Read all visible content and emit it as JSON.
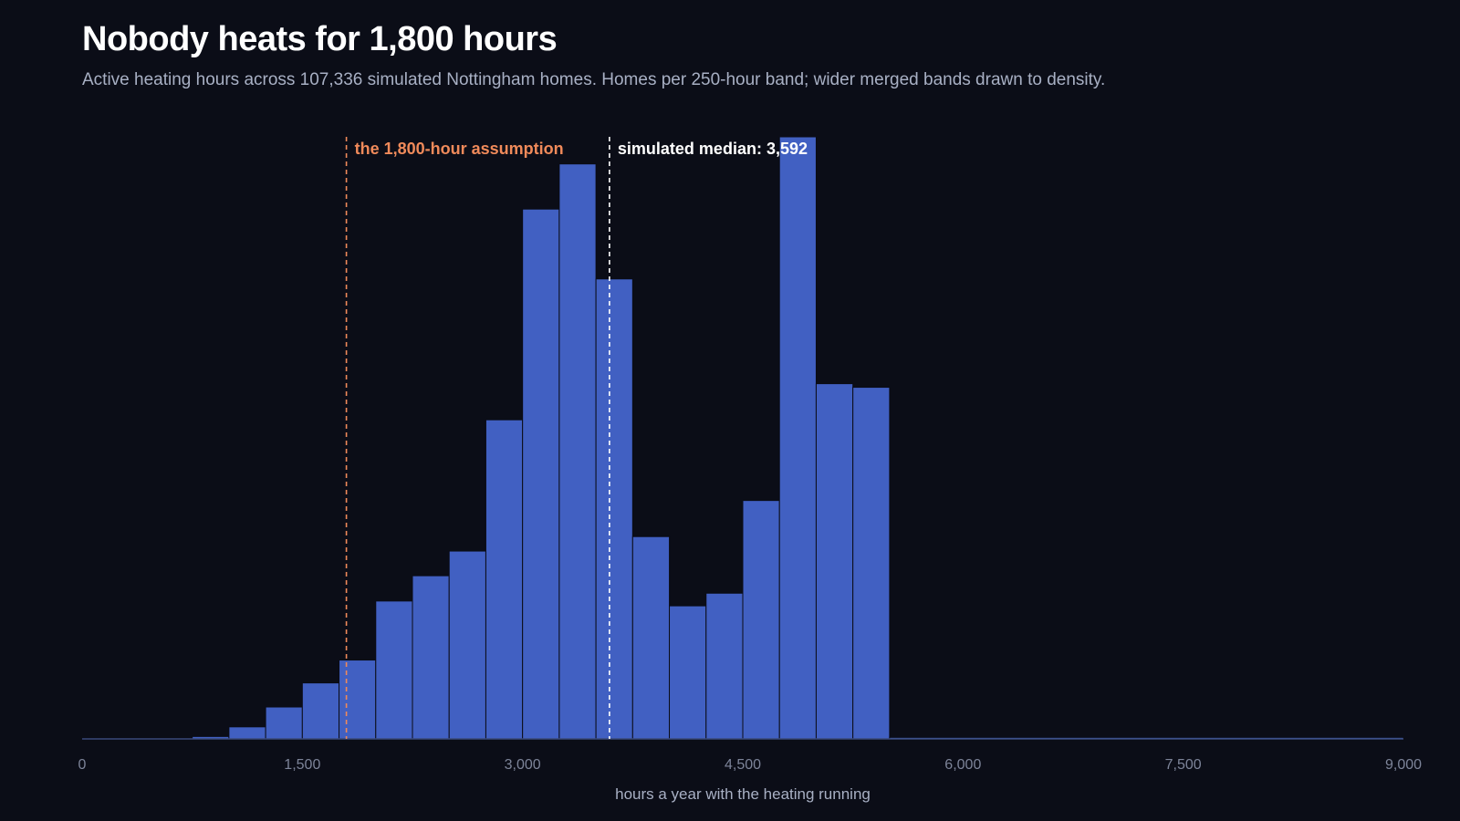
{
  "header": {
    "title": "Nobody heats for 1,800 hours",
    "subtitle": "Active heating hours across 107,336 simulated Nottingham homes. Homes per 250-hour band; wider merged bands drawn to density."
  },
  "colors": {
    "background": "#0b0d17",
    "bar": "#4160c2",
    "bar_stroke": "#0b0d17",
    "assumption": "#f08a5a",
    "median": "#ffffff",
    "axis": "#3a4a7a"
  },
  "chart_data": {
    "type": "bar",
    "subtype": "histogram",
    "xlabel": "hours a year with the heating running",
    "ylabel": "",
    "xlim": [
      0,
      9000
    ],
    "ylim": [
      0,
      1
    ],
    "y_units": "relative density (tallest band = 1.0, no y axis shown)",
    "x_ticks": [
      0,
      1500,
      3000,
      4500,
      6000,
      7500,
      9000
    ],
    "x_tick_labels": [
      "0",
      "1,500",
      "3,000",
      "4,500",
      "6,000",
      "7,500",
      "9,000"
    ],
    "grid": false,
    "legend": "none",
    "bins": [
      {
        "x0": 0,
        "x1": 750,
        "value": 0.0015
      },
      {
        "x0": 750,
        "x1": 1000,
        "value": 0.004
      },
      {
        "x0": 1000,
        "x1": 1250,
        "value": 0.02
      },
      {
        "x0": 1250,
        "x1": 1500,
        "value": 0.053
      },
      {
        "x0": 1500,
        "x1": 1750,
        "value": 0.093
      },
      {
        "x0": 1750,
        "x1": 2000,
        "value": 0.131
      },
      {
        "x0": 2000,
        "x1": 2250,
        "value": 0.229
      },
      {
        "x0": 2250,
        "x1": 2500,
        "value": 0.271
      },
      {
        "x0": 2500,
        "x1": 2750,
        "value": 0.312
      },
      {
        "x0": 2750,
        "x1": 3000,
        "value": 0.53
      },
      {
        "x0": 3000,
        "x1": 3250,
        "value": 0.88
      },
      {
        "x0": 3250,
        "x1": 3500,
        "value": 0.955
      },
      {
        "x0": 3500,
        "x1": 3750,
        "value": 0.764
      },
      {
        "x0": 3750,
        "x1": 4000,
        "value": 0.336
      },
      {
        "x0": 4000,
        "x1": 4250,
        "value": 0.221
      },
      {
        "x0": 4250,
        "x1": 4500,
        "value": 0.242
      },
      {
        "x0": 4500,
        "x1": 4750,
        "value": 0.396
      },
      {
        "x0": 4750,
        "x1": 5000,
        "value": 1.0
      },
      {
        "x0": 5000,
        "x1": 5250,
        "value": 0.59
      },
      {
        "x0": 5250,
        "x1": 5500,
        "value": 0.584
      },
      {
        "x0": 5500,
        "x1": 9000,
        "value": 0.0025
      }
    ],
    "annotations": [
      {
        "x": 1800,
        "label": "the 1,800-hour assumption",
        "color": "#f08a5a",
        "position": "left-of-line"
      },
      {
        "x": 3592,
        "label": "simulated median: 3,592",
        "color": "#ffffff",
        "position": "right-of-line"
      }
    ]
  }
}
